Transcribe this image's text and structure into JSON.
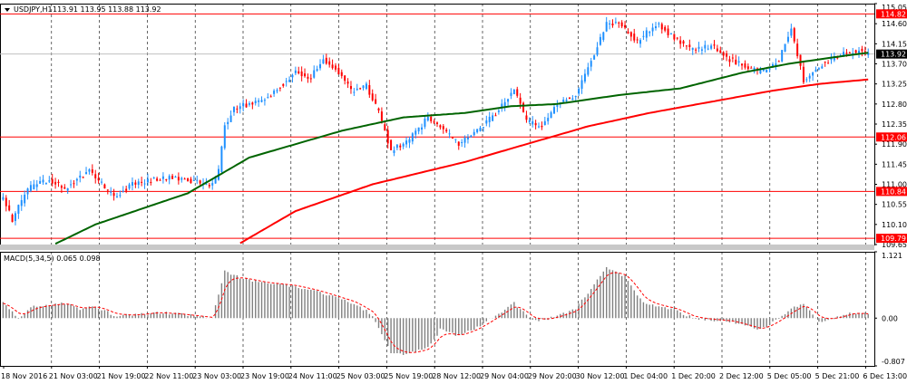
{
  "chart_data": [
    {
      "type": "candlestick",
      "title": "USDJPY,H1",
      "ohlc_header": "113.91 113.95 113.88 113.92",
      "ylim": [
        109.65,
        115.05
      ],
      "y_ticks": [
        {
          "value": 115.05,
          "label": "115.05"
        },
        {
          "value": 114.6,
          "label": "114.60"
        },
        {
          "value": 114.15,
          "label": "114.15"
        },
        {
          "value": 113.7,
          "label": "113.70"
        },
        {
          "value": 113.25,
          "label": "113.25"
        },
        {
          "value": 112.8,
          "label": "112.80"
        },
        {
          "value": 112.35,
          "label": "112.35"
        },
        {
          "value": 111.9,
          "label": "111.90"
        },
        {
          "value": 111.45,
          "label": "111.45"
        },
        {
          "value": 111.0,
          "label": "111.00"
        },
        {
          "value": 110.55,
          "label": "110.55"
        },
        {
          "value": 110.1,
          "label": "110.10"
        },
        {
          "value": 109.65,
          "label": "109.65"
        }
      ],
      "x_labels": [
        "18 Nov 2016",
        "21 Nov 03:00",
        "21 Nov 19:00",
        "22 Nov 11:00",
        "23 Nov 03:00",
        "23 Nov 19:00",
        "24 Nov 11:00",
        "25 Nov 03:00",
        "25 Nov 19:00",
        "28 Nov 12:00",
        "29 Nov 04:00",
        "29 Nov 20:00",
        "30 Nov 12:00",
        "1 Dec 04:00",
        "1 Dec 20:00",
        "2 Dec 12:00",
        "5 Dec 05:00",
        "5 Dec 21:00",
        "6 Dec 13:00"
      ],
      "price_levels": [
        {
          "value": 114.82,
          "label": "114.82",
          "color": "#ff0000"
        },
        {
          "value": 112.06,
          "label": "112.06",
          "color": "#ff0000"
        },
        {
          "value": 110.84,
          "label": "110.84",
          "color": "#ff0000"
        },
        {
          "value": 109.79,
          "label": "109.79",
          "color": "#ff0000"
        }
      ],
      "current_price": {
        "value": 113.92,
        "label": "113.92"
      },
      "up_color": "#1e90ff",
      "down_color": "#ff0000",
      "ma_fast_color": "#006400",
      "ma_slow_color": "#ff0000",
      "grid": true,
      "price_path_anchors": [
        [
          0,
          110.7
        ],
        [
          3,
          110.2
        ],
        [
          8,
          110.9
        ],
        [
          15,
          111.1
        ],
        [
          20,
          110.9
        ],
        [
          28,
          111.3
        ],
        [
          36,
          110.7
        ],
        [
          42,
          111.0
        ],
        [
          48,
          111.1
        ],
        [
          55,
          111.15
        ],
        [
          62,
          111.05
        ],
        [
          68,
          111.0
        ],
        [
          70,
          111.3
        ],
        [
          72,
          112.3
        ],
        [
          75,
          112.7
        ],
        [
          85,
          112.9
        ],
        [
          95,
          113.5
        ],
        [
          100,
          113.4
        ],
        [
          104,
          113.8
        ],
        [
          108,
          113.6
        ],
        [
          113,
          113.1
        ],
        [
          118,
          113.2
        ],
        [
          122,
          112.6
        ],
        [
          126,
          111.75
        ],
        [
          132,
          112.0
        ],
        [
          138,
          112.5
        ],
        [
          142,
          112.3
        ],
        [
          148,
          111.9
        ],
        [
          154,
          112.2
        ],
        [
          160,
          112.6
        ],
        [
          166,
          113.15
        ],
        [
          170,
          112.4
        ],
        [
          175,
          112.3
        ],
        [
          180,
          112.8
        ],
        [
          186,
          113.0
        ],
        [
          192,
          113.9
        ],
        [
          196,
          114.6
        ],
        [
          200,
          114.6
        ],
        [
          206,
          114.2
        ],
        [
          212,
          114.6
        ],
        [
          218,
          114.3
        ],
        [
          224,
          114.0
        ],
        [
          230,
          114.1
        ],
        [
          236,
          113.8
        ],
        [
          242,
          113.6
        ],
        [
          246,
          113.5
        ],
        [
          252,
          113.8
        ],
        [
          256,
          114.5
        ],
        [
          260,
          113.3
        ],
        [
          266,
          113.7
        ],
        [
          272,
          113.9
        ],
        [
          278,
          114.0
        ],
        [
          281,
          113.92
        ]
      ],
      "ma_fast_anchors": [
        [
          0,
          109.1
        ],
        [
          30,
          110.1
        ],
        [
          60,
          110.8
        ],
        [
          80,
          111.6
        ],
        [
          110,
          112.2
        ],
        [
          130,
          112.5
        ],
        [
          150,
          112.6
        ],
        [
          165,
          112.75
        ],
        [
          180,
          112.8
        ],
        [
          200,
          113.0
        ],
        [
          220,
          113.15
        ],
        [
          240,
          113.5
        ],
        [
          255,
          113.7
        ],
        [
          270,
          113.85
        ],
        [
          281,
          113.95
        ]
      ],
      "ma_slow_anchors": [
        [
          75,
          109.6
        ],
        [
          95,
          110.4
        ],
        [
          120,
          111.0
        ],
        [
          150,
          111.5
        ],
        [
          170,
          111.9
        ],
        [
          190,
          112.3
        ],
        [
          210,
          112.6
        ],
        [
          230,
          112.85
        ],
        [
          250,
          113.1
        ],
        [
          265,
          113.25
        ],
        [
          281,
          113.35
        ]
      ]
    },
    {
      "type": "histogram",
      "title": "MACD(5,34,5) 0.065 0.098",
      "ylim": [
        -0.807,
        1.121
      ],
      "y_ticks": [
        {
          "value": 1.121,
          "label": "1.121"
        },
        {
          "value": 0.0,
          "label": "0.00"
        },
        {
          "value": -0.807,
          "label": "-0.807"
        }
      ],
      "bar_color": "#808080",
      "signal_color": "#ff0000",
      "macd_anchors": [
        [
          0,
          0.25
        ],
        [
          5,
          0.0
        ],
        [
          10,
          0.2
        ],
        [
          20,
          0.25
        ],
        [
          25,
          0.15
        ],
        [
          30,
          0.2
        ],
        [
          36,
          0.05
        ],
        [
          42,
          0.05
        ],
        [
          50,
          0.1
        ],
        [
          60,
          0.05
        ],
        [
          68,
          0.0
        ],
        [
          72,
          0.8
        ],
        [
          76,
          0.7
        ],
        [
          84,
          0.6
        ],
        [
          94,
          0.55
        ],
        [
          102,
          0.45
        ],
        [
          108,
          0.35
        ],
        [
          114,
          0.25
        ],
        [
          120,
          0.05
        ],
        [
          126,
          -0.6
        ],
        [
          132,
          -0.6
        ],
        [
          138,
          -0.5
        ],
        [
          142,
          -0.2
        ],
        [
          148,
          -0.3
        ],
        [
          154,
          -0.15
        ],
        [
          160,
          0.05
        ],
        [
          166,
          0.25
        ],
        [
          172,
          -0.05
        ],
        [
          178,
          0.0
        ],
        [
          186,
          0.15
        ],
        [
          196,
          0.85
        ],
        [
          202,
          0.7
        ],
        [
          208,
          0.25
        ],
        [
          218,
          0.15
        ],
        [
          224,
          0.0
        ],
        [
          236,
          -0.05
        ],
        [
          246,
          -0.2
        ],
        [
          252,
          0.0
        ],
        [
          256,
          0.15
        ],
        [
          260,
          0.25
        ],
        [
          265,
          -0.05
        ],
        [
          270,
          0.0
        ],
        [
          276,
          0.1
        ],
        [
          281,
          0.065
        ]
      ]
    }
  ]
}
